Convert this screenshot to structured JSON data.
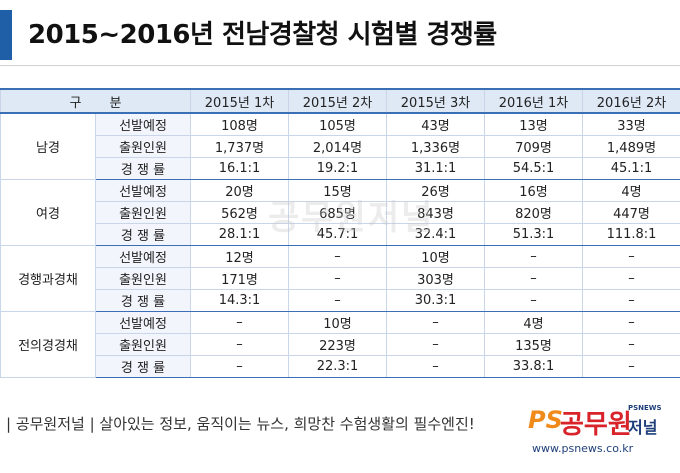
{
  "title": "2015~2016년 전남경찰청 시험별 경쟁률",
  "table": {
    "header": [
      "구 분",
      "2015년 1차",
      "2015년 2차",
      "2015년 3차",
      "2016년 1차",
      "2016년 2차"
    ],
    "groups": [
      {
        "name": "남경",
        "rows": [
          {
            "label": "선발예정",
            "values": [
              "108명",
              "105명",
              "43명",
              "13명",
              "33명"
            ]
          },
          {
            "label": "출원인원",
            "values": [
              "1,737명",
              "2,014명",
              "1,336명",
              "709명",
              "1,489명"
            ]
          },
          {
            "label": "경 쟁 률",
            "values": [
              "16.1:1",
              "19.2:1",
              "31.1:1",
              "54.5:1",
              "45.1:1"
            ]
          }
        ]
      },
      {
        "name": "여경",
        "rows": [
          {
            "label": "선발예정",
            "values": [
              "20명",
              "15명",
              "26명",
              "16명",
              "4명"
            ]
          },
          {
            "label": "출원인원",
            "values": [
              "562명",
              "685명",
              "843명",
              "820명",
              "447명"
            ]
          },
          {
            "label": "경 쟁 률",
            "values": [
              "28.1:1",
              "45.7:1",
              "32.4:1",
              "51.3:1",
              "111.8:1"
            ]
          }
        ]
      },
      {
        "name": "경행과경채",
        "rows": [
          {
            "label": "선발예정",
            "values": [
              "12명",
              "–",
              "10명",
              "–",
              "–"
            ]
          },
          {
            "label": "출원인원",
            "values": [
              "171명",
              "–",
              "303명",
              "–",
              "–"
            ]
          },
          {
            "label": "경 쟁 률",
            "values": [
              "14.3:1",
              "–",
              "30.3:1",
              "–",
              "–"
            ]
          }
        ]
      },
      {
        "name": "전의경경채",
        "rows": [
          {
            "label": "선발예정",
            "values": [
              "–",
              "10명",
              "–",
              "4명",
              "–"
            ]
          },
          {
            "label": "출원인원",
            "values": [
              "–",
              "223명",
              "–",
              "135명",
              "–"
            ]
          },
          {
            "label": "경 쟁 률",
            "values": [
              "–",
              "22.3:1",
              "–",
              "33.8:1",
              "–"
            ]
          }
        ]
      }
    ]
  },
  "watermark": "공무원저널",
  "footer": {
    "text": "| 공무원저널 | 살아있는 정보, 움직이는 뉴스, 희망찬 수험생활의 필수엔진!",
    "logo_ps": "PS",
    "logo_brand": "공무원",
    "logo_brand2": "저널",
    "logo_small": "PSNEWS",
    "url": "www.psnews.co.kr"
  },
  "colors": {
    "accent": "#1f5fa8",
    "header_bg": "#dfe9f6",
    "sub_bg": "#f2f6fc",
    "logo_orange": "#f08a1a",
    "logo_red": "#d9232b"
  }
}
